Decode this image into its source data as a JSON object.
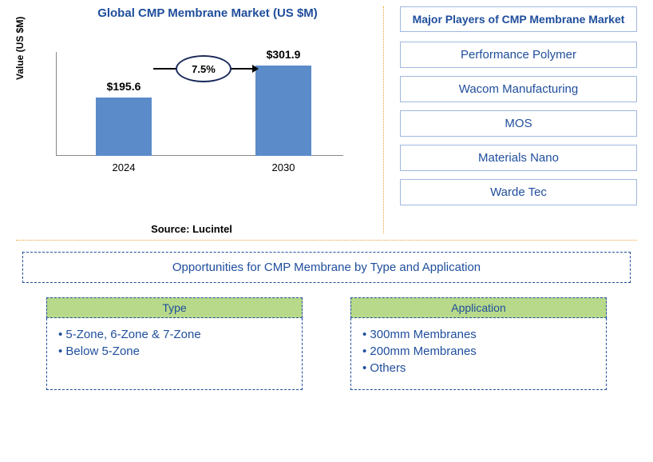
{
  "chart": {
    "title": "Global CMP Membrane Market (US $M)",
    "ylabel": "Value (US $M)",
    "type": "bar",
    "categories": [
      "2024",
      "2030"
    ],
    "values": [
      195.6,
      301.9
    ],
    "value_labels": [
      "$195.6",
      "$301.9"
    ],
    "bar_color": "#5b8bc9",
    "ylim_max": 320,
    "growth_label": "7.5%",
    "source": "Source: Lucintel"
  },
  "players": {
    "title": "Major Players of CMP Membrane Market",
    "list": [
      "Performance Polymer",
      "Wacom Manufacturing",
      "MOS",
      "Materials Nano",
      "Warde Tec"
    ]
  },
  "opportunities": {
    "title": "Opportunities for CMP Membrane by Type and Application",
    "columns": [
      {
        "header": "Type",
        "items": [
          "5-Zone, 6-Zone & 7-Zone",
          "Below 5-Zone"
        ]
      },
      {
        "header": "Application",
        "items": [
          "300mm Membranes",
          "200mm Membranes",
          "Others"
        ]
      }
    ]
  },
  "colors": {
    "brand_blue": "#1f4e9c",
    "box_border": "#a0b8e0",
    "divider": "#f0a030",
    "opps_header_bg": "#b8d98a"
  }
}
